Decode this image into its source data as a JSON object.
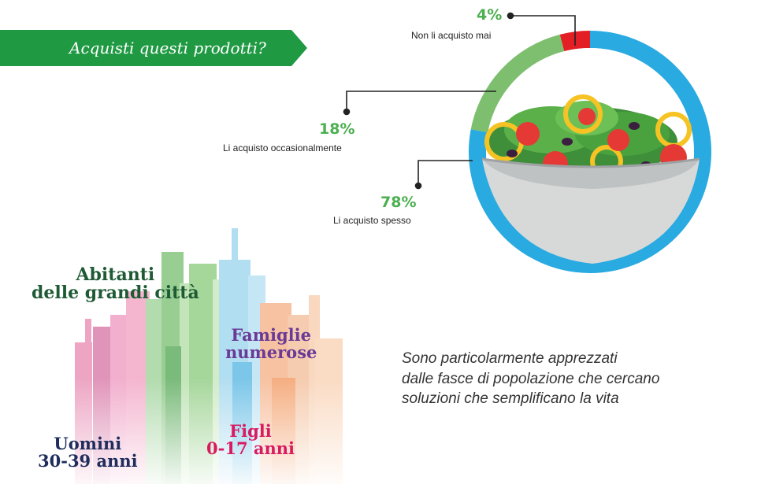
{
  "banner": {
    "text": "Acquisti questi prodotti?",
    "color": "#1f9a43"
  },
  "chart_data": {
    "type": "pie",
    "categories": [
      "Non li acquisto mai",
      "Li acquisto occasionalmente",
      "Li acquisto spesso"
    ],
    "values": [
      4,
      18,
      78
    ],
    "value_labels": [
      "4%",
      "18%",
      "78%"
    ],
    "colors": [
      "#e31e24",
      "#7dbf6e",
      "#29aae1"
    ]
  },
  "segments": [
    {
      "label": "Abitanti\ndelle grandi città",
      "color": "#1e5a34"
    },
    {
      "label": "Famiglie\nnumerose",
      "color": "#6a3a96"
    },
    {
      "label": "Uomini\n30-39 anni",
      "color": "#1f2d5c"
    },
    {
      "label": "Figli\n0-17 anni",
      "color": "#d81b60"
    }
  ],
  "description": {
    "lines": [
      "Sono particolarmente apprezzati",
      "dalle fasce di popolazione che cercano",
      "soluzioni che semplificano la vita"
    ]
  }
}
